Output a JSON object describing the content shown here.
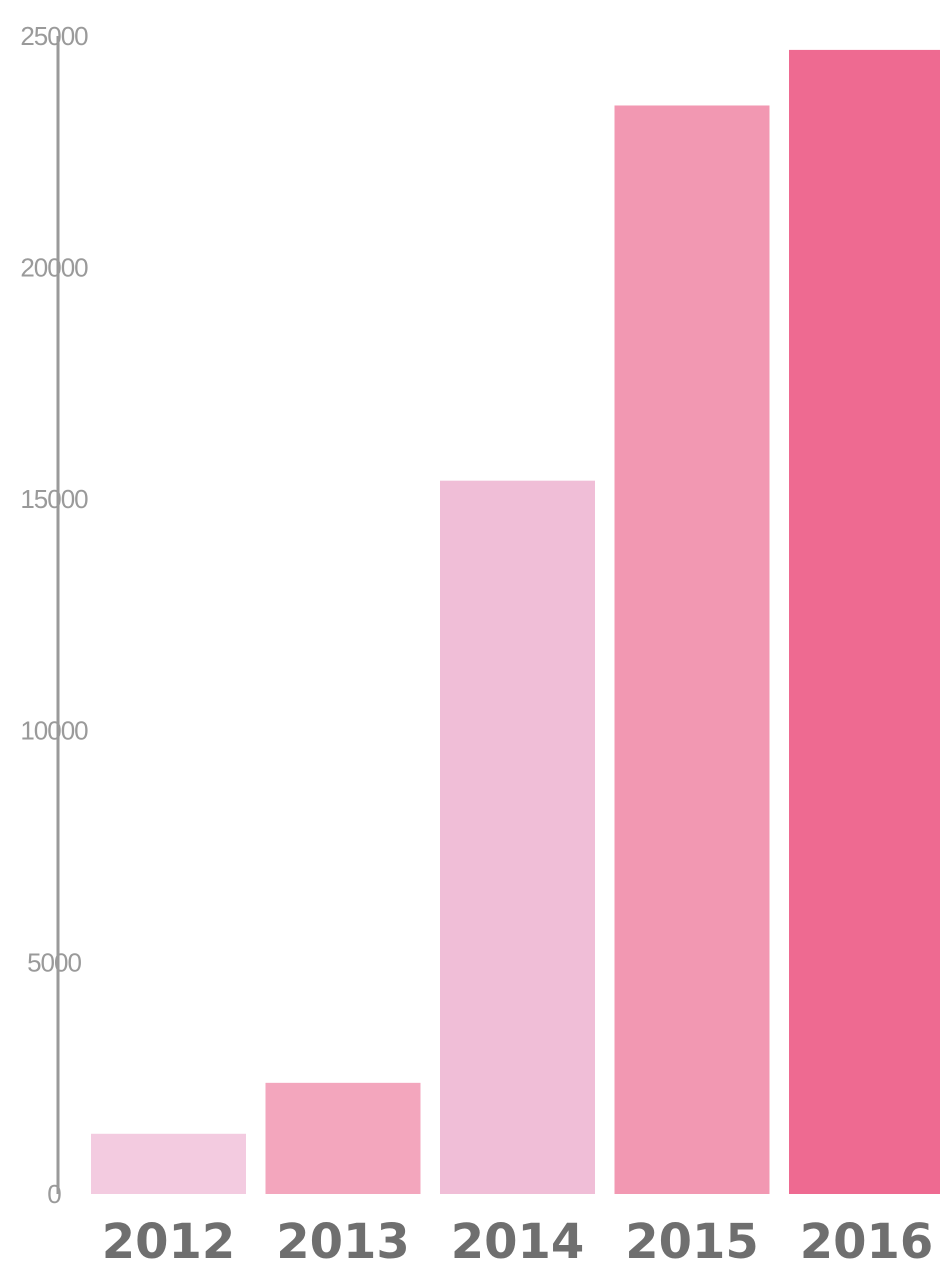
{
  "chart_data": {
    "type": "bar",
    "categories": [
      "2012",
      "2013",
      "2014",
      "2015",
      "2016"
    ],
    "values": [
      1300,
      2400,
      15400,
      23500,
      24700
    ],
    "colors": [
      "#f3cbe0",
      "#f3a6bd",
      "#f0bed7",
      "#f298b2",
      "#ee6a91"
    ],
    "axis_color": "#9a9a9a",
    "ylim": [
      0,
      25000
    ],
    "yticks": [
      0,
      5000,
      10000,
      15000,
      20000,
      25000
    ],
    "ytick_labels": [
      "0",
      "5000",
      "10000",
      "15000",
      "20000",
      "25000"
    ],
    "title": "",
    "xlabel": "",
    "ylabel": "",
    "grid": false,
    "legend": "none"
  }
}
